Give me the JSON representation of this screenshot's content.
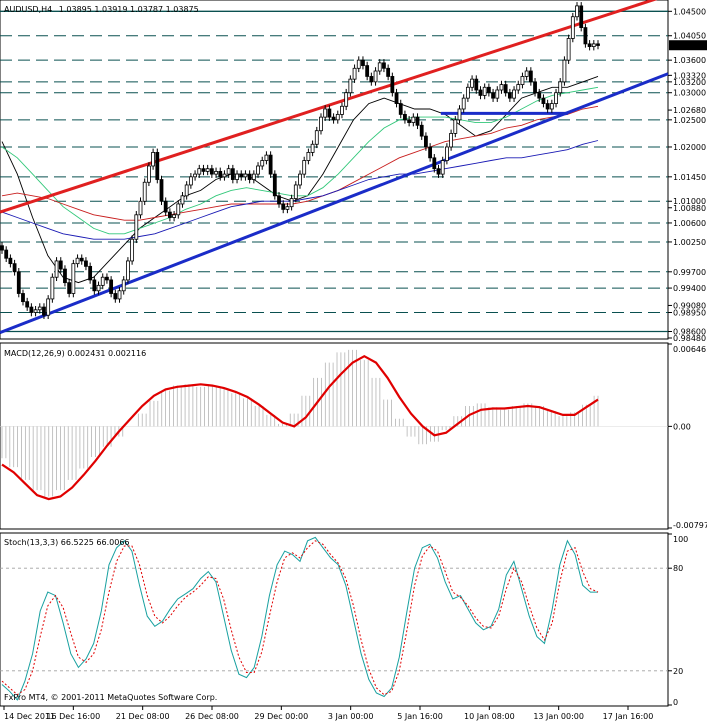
{
  "window": {
    "symbol_header": "AUDUSD,H4",
    "ohlc": "1.03895 1.03919 1.03787 1.03875",
    "copyright": "FxPro MT4, © 2001-2011 MetaQuotes Software Corp."
  },
  "colors": {
    "candle": "#000000",
    "channel_upper": "#e02020",
    "channel_lower": "#1a2cc8",
    "ma_fast": "#000000",
    "ma_mid": "#32c87a",
    "ma_slow1": "#c81e1e",
    "ma_slow2": "#1a1ab4",
    "level_line": "#0a5050",
    "macd_hist": "#b4b4b4",
    "macd_signal": "#e00000",
    "stoch_main": "#18a0a0",
    "stoch_signal": "#e00000",
    "current_price_bg": "#000000"
  },
  "chart_data": [
    {
      "type": "line",
      "title": "AUDUSD,H4",
      "subtitle": "1.03895 1.03919 1.03787 1.03875",
      "x_labels": [
        "14 Dec 2011",
        "16 Dec 16:00",
        "21 Dec 08:00",
        "26 Dec 08:00",
        "29 Dec 00:00",
        "3 Jan 00:00",
        "5 Jan 16:00",
        "10 Jan 08:00",
        "13 Jan 00:00",
        "17 Jan 16:00"
      ],
      "ylim": [
        0.9848,
        1.0469
      ],
      "y_ticks": [
        "1.04500",
        "1.04050",
        "1.03875",
        "1.03600",
        "1.03320",
        "1.03200",
        "1.03000",
        "1.02680",
        "1.02500",
        "1.02000",
        "1.01450",
        "1.01000",
        "1.00880",
        "1.00600",
        "1.00250",
        "0.99700",
        "0.99400",
        "0.99080",
        "0.98950",
        "0.98600",
        "0.98480"
      ],
      "highlighted_price": "1.03875",
      "levels": [
        1.045,
        1.0405,
        1.036,
        1.032,
        1.03,
        1.025,
        1.02,
        1.0145,
        1.01,
        1.006,
        1.0025,
        0.997,
        0.994,
        0.9895,
        0.986
      ],
      "candles_close": [
        1.001,
        0.9995,
        0.9985,
        0.997,
        0.993,
        0.9915,
        0.9905,
        0.9895,
        0.99,
        0.9905,
        0.989,
        0.992,
        0.996,
        0.999,
        0.9975,
        0.995,
        0.993,
        0.9985,
        0.9995,
        0.999,
        0.998,
        0.9955,
        0.9935,
        0.9945,
        0.996,
        0.9955,
        0.993,
        0.992,
        0.9935,
        0.9955,
        0.999,
        1.003,
        1.0075,
        1.01,
        1.0135,
        1.0165,
        1.019,
        1.014,
        1.01,
        1.008,
        1.007,
        1.0075,
        1.0095,
        1.011,
        1.013,
        1.0145,
        1.015,
        1.016,
        1.0155,
        1.016,
        1.015,
        1.0155,
        1.0145,
        1.015,
        1.016,
        1.014,
        1.015,
        1.0145,
        1.015,
        1.014,
        1.015,
        1.0165,
        1.0175,
        1.0185,
        1.015,
        1.011,
        1.0095,
        1.0085,
        1.009,
        1.0105,
        1.013,
        1.015,
        1.0175,
        1.019,
        1.0205,
        1.023,
        1.0255,
        1.027,
        1.0255,
        1.025,
        1.026,
        1.0275,
        1.03,
        1.0325,
        1.0345,
        1.036,
        1.035,
        1.033,
        1.032,
        1.034,
        1.0355,
        1.0345,
        1.033,
        1.03,
        1.028,
        1.026,
        1.025,
        1.0245,
        1.0255,
        1.024,
        1.022,
        1.02,
        1.018,
        1.016,
        1.015,
        1.0175,
        1.02,
        1.0225,
        1.025,
        1.027,
        1.029,
        1.031,
        1.0325,
        1.0305,
        1.0295,
        1.031,
        1.03,
        1.029,
        1.0305,
        1.0315,
        1.03,
        1.029,
        1.0305,
        1.0315,
        1.033,
        1.034,
        1.032,
        1.03,
        1.029,
        1.028,
        1.027,
        1.028,
        1.03,
        1.032,
        1.036,
        1.04,
        1.044,
        1.046,
        1.042,
        1.039,
        1.0385,
        1.039,
        1.0387
      ],
      "channel_upper": {
        "x_from": 0.0,
        "y_from": 1.008,
        "x_to": 1.0,
        "y_to": 1.048
      },
      "channel_lower": {
        "x_from": 0.0,
        "y_from": 0.9858,
        "x_to": 1.0,
        "y_to": 1.0335
      },
      "horizontal_segment": {
        "x_from": 0.66,
        "x_to": 0.85,
        "y": 1.0262
      },
      "moving_averages": [
        {
          "values": [
            1.021,
            1.015,
            1.007,
            1.0,
            0.996,
            0.995,
            0.996,
            0.999,
            1.002,
            1.005,
            1.007,
            1.009,
            1.011,
            1.012,
            1.014,
            1.015,
            1.015,
            1.013,
            1.011,
            1.01,
            1.011,
            1.015,
            1.02,
            1.025,
            1.028,
            1.029,
            1.028,
            1.027,
            1.027,
            1.026,
            1.024,
            1.022,
            1.023,
            1.026,
            1.029,
            1.03,
            1.031,
            1.031,
            1.032,
            1.033
          ]
        },
        {
          "values": [
            1.02,
            1.018,
            1.015,
            1.012,
            1.009,
            1.007,
            1.005,
            1.004,
            1.004,
            1.005,
            1.006,
            1.007,
            1.0085,
            1.0095,
            1.011,
            1.012,
            1.0125,
            1.012,
            1.0115,
            1.011,
            1.011,
            1.0125,
            1.015,
            1.018,
            1.021,
            1.0235,
            1.025,
            1.0255,
            1.0255,
            1.0255,
            1.025,
            1.0245,
            1.0245,
            1.0255,
            1.027,
            1.0285,
            1.0295,
            1.03,
            1.0305,
            1.031
          ]
        },
        {
          "values": [
            1.011,
            1.0115,
            1.011,
            1.0105,
            1.0095,
            1.0085,
            1.0075,
            1.007,
            1.0065,
            1.0065,
            1.007,
            1.0075,
            1.008,
            1.0085,
            1.009,
            1.0095,
            1.0095,
            1.0095,
            1.0095,
            1.0095,
            1.01,
            1.011,
            1.012,
            1.0135,
            1.015,
            1.0165,
            1.018,
            1.019,
            1.02,
            1.021,
            1.0215,
            1.022,
            1.0225,
            1.0235,
            1.024,
            1.025,
            1.0255,
            1.026,
            1.027,
            1.0275
          ]
        },
        {
          "values": [
            1.008,
            1.007,
            1.006,
            1.005,
            1.004,
            1.0035,
            1.003,
            1.003,
            1.003,
            1.0035,
            1.004,
            1.005,
            1.006,
            1.007,
            1.008,
            1.009,
            1.0095,
            1.01,
            1.01,
            1.01,
            1.0105,
            1.011,
            1.012,
            1.013,
            1.014,
            1.0145,
            1.015,
            1.015,
            1.0155,
            1.016,
            1.0165,
            1.017,
            1.0175,
            1.018,
            1.018,
            1.0185,
            1.019,
            1.0195,
            1.0205,
            1.0212
          ]
        }
      ]
    },
    {
      "type": "bar",
      "title": "MACD(12,26,9) 0.002431 0.002116",
      "ylim": [
        -0.00797,
        0.00646
      ],
      "y_ticks": [
        "0.00646",
        "0.00",
        "-0.00797"
      ],
      "histogram": [
        -0.0025,
        -0.0032,
        -0.0042,
        -0.005,
        -0.0055,
        -0.005,
        -0.0042,
        -0.0033,
        -0.0024,
        -0.0016,
        -0.0008,
        0.0,
        0.001,
        0.002,
        0.0028,
        0.0032,
        0.0033,
        0.0031,
        0.0032,
        0.003,
        0.0026,
        0.0022,
        0.0016,
        0.0009,
        0.0002,
        0.001,
        0.0024,
        0.0038,
        0.005,
        0.0058,
        0.006,
        0.0052,
        0.0038,
        0.0021,
        0.0006,
        -0.0008,
        -0.0014,
        -0.0012,
        -0.0003,
        0.0008,
        0.0016,
        0.0018,
        0.0015,
        0.0013,
        0.0016,
        0.0018,
        0.0016,
        0.0012,
        0.0008,
        0.0011,
        0.0017,
        0.0024
      ],
      "signal": [
        -0.003,
        -0.0036,
        -0.0045,
        -0.0054,
        -0.0057,
        -0.0055,
        -0.0048,
        -0.0038,
        -0.0027,
        -0.0015,
        -0.0004,
        0.0006,
        0.0016,
        0.0024,
        0.0029,
        0.0031,
        0.0032,
        0.0033,
        0.0032,
        0.003,
        0.0027,
        0.0023,
        0.0017,
        0.001,
        0.0003,
        0.0,
        0.0007,
        0.0019,
        0.0031,
        0.0041,
        0.005,
        0.0055,
        0.005,
        0.0038,
        0.0023,
        0.001,
        0.0,
        -0.0007,
        -0.0005,
        0.0002,
        0.0009,
        0.0013,
        0.0014,
        0.0014,
        0.0015,
        0.0016,
        0.0015,
        0.0012,
        0.0009,
        0.0009,
        0.0015,
        0.0021
      ]
    },
    {
      "type": "line",
      "title": "Stoch(13,3,3) 66.5225 66.0066",
      "ylim": [
        0,
        100
      ],
      "y_ticks": [
        "100",
        "80",
        "20",
        "0"
      ],
      "levels": [
        80,
        20
      ],
      "series": [
        {
          "values": [
            12,
            8,
            3,
            14,
            30,
            55,
            66,
            64,
            48,
            30,
            22,
            27,
            36,
            55,
            82,
            92,
            96,
            90,
            70,
            52,
            46,
            49,
            56,
            62,
            65,
            68,
            74,
            78,
            72,
            52,
            32,
            18,
            16,
            22,
            40,
            64,
            82,
            90,
            88,
            84,
            96,
            98,
            92,
            86,
            82,
            70,
            50,
            30,
            15,
            7,
            5,
            10,
            28,
            55,
            80,
            92,
            94,
            86,
            72,
            62,
            64,
            56,
            48,
            44,
            46,
            56,
            76,
            84,
            68,
            52,
            40,
            36,
            56,
            82,
            96,
            88,
            70,
            66,
            66
          ]
        },
        {
          "values": [
            14,
            10,
            6,
            9,
            20,
            40,
            58,
            64,
            57,
            42,
            28,
            25,
            30,
            44,
            66,
            84,
            93,
            93,
            82,
            64,
            52,
            48,
            52,
            58,
            63,
            66,
            70,
            75,
            74,
            62,
            44,
            28,
            19,
            19,
            31,
            52,
            72,
            86,
            89,
            86,
            92,
            96,
            94,
            88,
            83,
            74,
            58,
            38,
            21,
            10,
            6,
            8,
            20,
            44,
            70,
            87,
            93,
            90,
            78,
            66,
            63,
            58,
            51,
            46,
            45,
            52,
            68,
            80,
            72,
            58,
            45,
            38,
            48,
            72,
            90,
            92,
            78,
            68,
            66
          ]
        }
      ]
    }
  ]
}
